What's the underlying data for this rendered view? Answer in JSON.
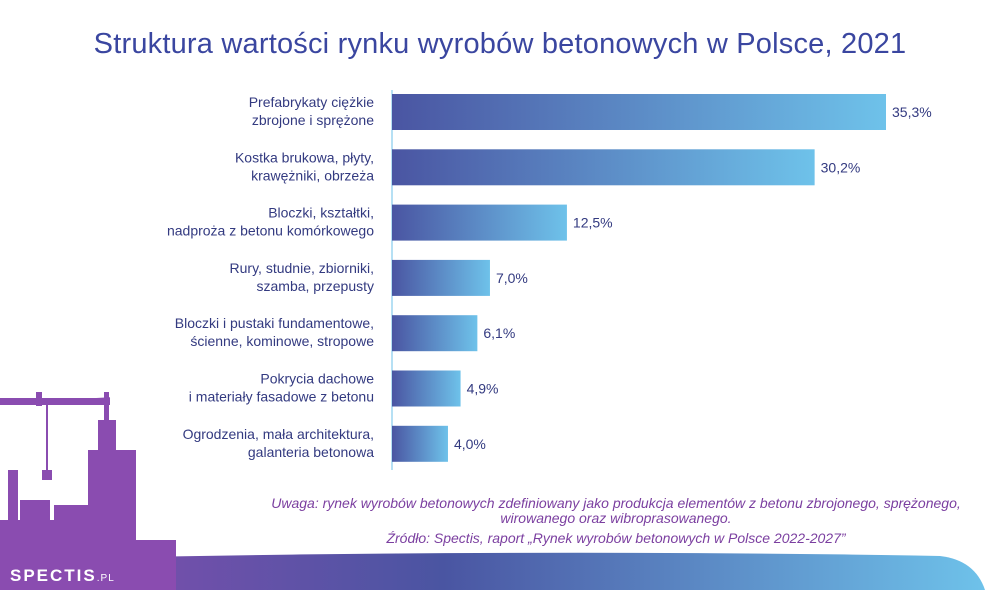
{
  "chart_data": {
    "type": "bar",
    "orientation": "horizontal",
    "title": "Struktura wartości rynku wyrobów betonowych w Polsce, 2021",
    "categories": [
      [
        "Prefabrykaty ciężkie",
        "zbrojone i sprężone"
      ],
      [
        "Kostka brukowa, płyty,",
        "krawężniki, obrzeża"
      ],
      [
        "Bloczki, kształtki,",
        "nadproża z betonu komórkowego"
      ],
      [
        "Rury, studnie, zbiorniki,",
        "szamba, przepusty"
      ],
      [
        "Bloczki i pustaki fundamentowe,",
        "ścienne, kominowe, stropowe"
      ],
      [
        "Pokrycia dachowe",
        "i materiały fasadowe z betonu"
      ],
      [
        "Ogrodzenia, mała architektura,",
        "galanteria betonowa"
      ]
    ],
    "values": [
      35.3,
      30.2,
      12.5,
      7.0,
      6.1,
      4.9,
      4.0
    ],
    "value_labels": [
      "35,3%",
      "30,2%",
      "12,5%",
      "7,0%",
      "6,1%",
      "4,9%",
      "4,0%"
    ],
    "unit": "%",
    "colors": {
      "bar_start": "#4a55a2",
      "bar_end": "#6ec2ea",
      "label": "#333a80"
    },
    "xlim": [
      0,
      35.3
    ],
    "grid": false,
    "legend": "none"
  },
  "footer": {
    "note": "Uwaga: rynek wyrobów betonowych zdefiniowany jako produkcja elementów z betonu zbrojonego, sprężonego, wirowanego oraz wibroprasowanego.",
    "source": "Źródło: Spectis, raport „Rynek wyrobów betonowych w Polsce 2022-2027”"
  },
  "brand": {
    "name": "SPECTIS",
    "suffix": ".PL"
  }
}
